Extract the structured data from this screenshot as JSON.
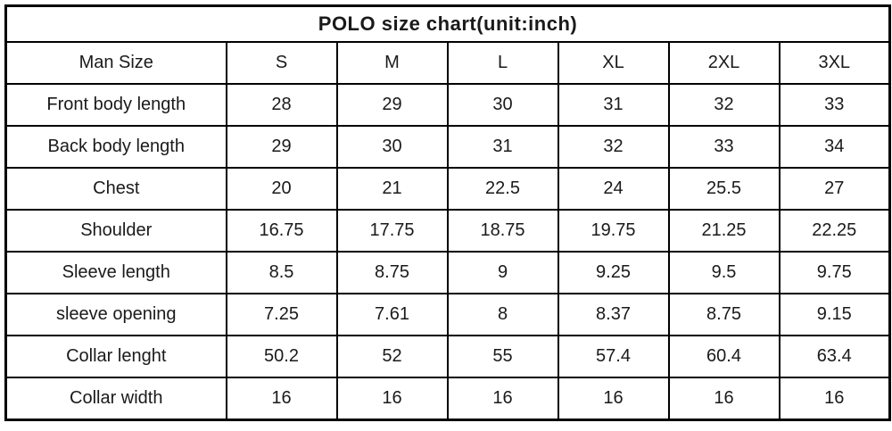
{
  "colors": {
    "background": "#ffffff",
    "border": "#000000",
    "text": "#1a1a1a"
  },
  "chart_data": {
    "type": "table",
    "title": "POLO size chart(unit:inch)",
    "unit": "inch",
    "header": [
      "Man Size",
      "S",
      "M",
      "L",
      "XL",
      "2XL",
      "3XL"
    ],
    "rows": [
      {
        "label": "Front body length",
        "values": [
          "28",
          "29",
          "30",
          "31",
          "32",
          "33"
        ]
      },
      {
        "label": "Back body length",
        "values": [
          "29",
          "30",
          "31",
          "32",
          "33",
          "34"
        ]
      },
      {
        "label": "Chest",
        "values": [
          "20",
          "21",
          "22.5",
          "24",
          "25.5",
          "27"
        ]
      },
      {
        "label": "Shoulder",
        "values": [
          "16.75",
          "17.75",
          "18.75",
          "19.75",
          "21.25",
          "22.25"
        ]
      },
      {
        "label": "Sleeve length",
        "values": [
          "8.5",
          "8.75",
          "9",
          "9.25",
          "9.5",
          "9.75"
        ]
      },
      {
        "label": "sleeve opening",
        "values": [
          "7.25",
          "7.61",
          "8",
          "8.37",
          "8.75",
          "9.15"
        ]
      },
      {
        "label": "Collar lenght",
        "values": [
          "50.2",
          "52",
          "55",
          "57.4",
          "60.4",
          "63.4"
        ]
      },
      {
        "label": "Collar width",
        "values": [
          "16",
          "16",
          "16",
          "16",
          "16",
          "16"
        ]
      }
    ]
  }
}
